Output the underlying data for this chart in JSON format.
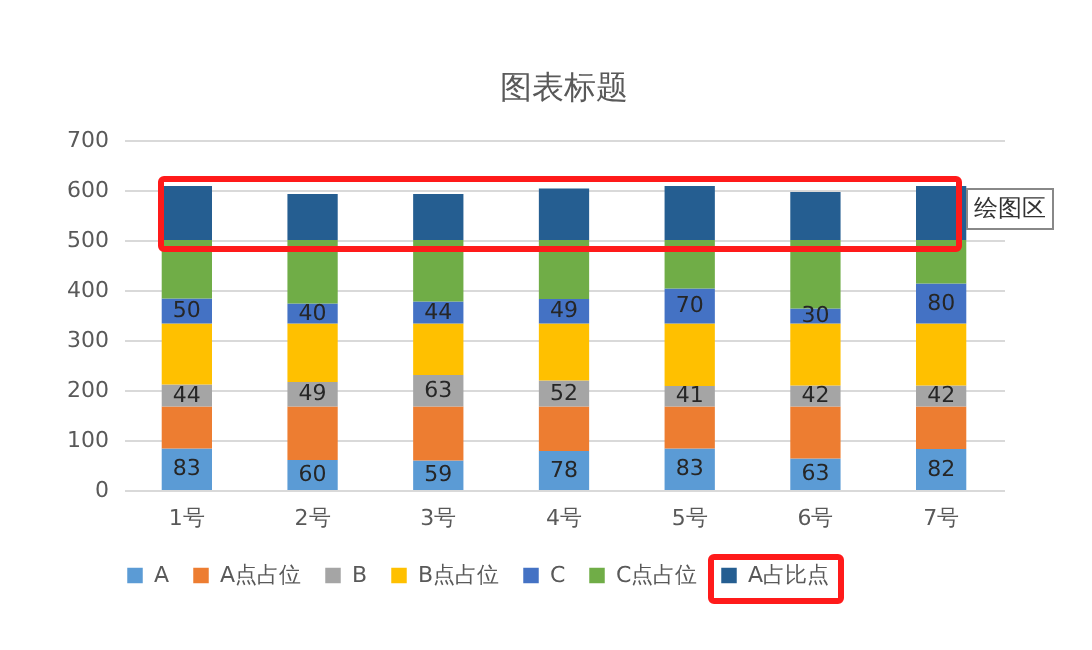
{
  "chart_data": {
    "type": "bar",
    "title": "图表标题",
    "stacked": true,
    "categories": [
      "1号",
      "2号",
      "3号",
      "4号",
      "5号",
      "6号",
      "7号"
    ],
    "series": [
      {
        "name": "A",
        "color": "#5b9bd5",
        "values": [
          83,
          60,
          59,
          78,
          83,
          63,
          82
        ],
        "value_labels": [
          "83",
          "60",
          "59",
          "78",
          "83",
          "63",
          "82"
        ]
      },
      {
        "name": "A点占位",
        "color": "#ed7d31",
        "values": [
          84,
          107,
          108,
          89,
          84,
          104,
          85
        ]
      },
      {
        "name": "B",
        "color": "#a5a5a5",
        "values": [
          44,
          49,
          63,
          52,
          41,
          42,
          42
        ],
        "value_labels": [
          "44",
          "49",
          "63",
          "52",
          "41",
          "42",
          "42"
        ]
      },
      {
        "name": "B点占位",
        "color": "#ffc000",
        "values": [
          122,
          117,
          103,
          114,
          125,
          124,
          124
        ]
      },
      {
        "name": "C",
        "color": "#4472c4",
        "values": [
          50,
          40,
          44,
          49,
          70,
          30,
          80
        ],
        "value_labels": [
          "50",
          "40",
          "44",
          "49",
          "70",
          "30",
          "80"
        ]
      },
      {
        "name": "C点占位",
        "color": "#70ad47",
        "values": [
          117,
          127,
          123,
          118,
          97,
          137,
          87
        ]
      },
      {
        "name": "A占比点",
        "color": "#255e91",
        "values": [
          108,
          92,
          92,
          103,
          108,
          96,
          108
        ]
      }
    ],
    "ylim": [
      0,
      700
    ],
    "yticks": [
      0,
      100,
      200,
      300,
      400,
      500,
      600,
      700
    ],
    "grid": "y",
    "legend": "bottom",
    "annotations": [
      "绘图区"
    ]
  }
}
